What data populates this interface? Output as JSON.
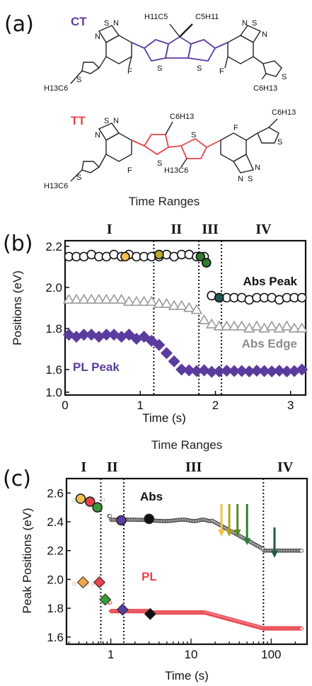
{
  "panel_a": {
    "label": "(a)",
    "molecules": [
      {
        "name": "CT",
        "color": "#5b3c9e",
        "atoms": {
          "s_n": "S",
          "n": "N",
          "f": "F",
          "s": "S",
          "h11c5": "H11C5",
          "c5h11": "C5H11",
          "h13c6": "H13C6",
          "c6h13": "C6H13"
        }
      },
      {
        "name": "TT",
        "color": "#e8434b",
        "atoms": {
          "s_n": "S",
          "n": "N",
          "f": "F",
          "s": "S",
          "h13c6": "H13C6",
          "c6h13": "C6H13"
        }
      }
    ]
  },
  "chart_data": [
    {
      "panel": "(b)",
      "type": "scatter",
      "range_title": "Time Ranges",
      "ranges": [
        "I",
        "II",
        "III",
        "IV"
      ],
      "xlabel": "Time (s)",
      "ylabel": "Positions (eV)",
      "xlim": [
        0,
        3.2
      ],
      "ylim": [
        1.0,
        2.2
      ],
      "axis_break": {
        "between": [
          1.0,
          1.6
        ]
      },
      "xticks": [
        0,
        1,
        2,
        3
      ],
      "yticks": [
        1.0,
        1.6,
        1.8,
        2.0,
        2.2
      ],
      "dividers": [
        1.18,
        1.78,
        2.08
      ],
      "series": [
        {
          "name": "Abs Peak",
          "marker": "circle",
          "color": "#111111",
          "x": [
            0.05,
            0.15,
            0.25,
            0.35,
            0.45,
            0.55,
            0.65,
            0.75,
            0.85,
            0.95,
            1.05,
            1.15,
            1.25,
            1.35,
            1.45,
            1.55,
            1.65,
            1.75,
            1.85,
            1.95,
            2.05,
            2.15,
            2.25,
            2.35,
            2.45,
            2.55,
            2.65,
            2.75,
            2.85,
            2.95,
            3.05,
            3.15
          ],
          "y": [
            2.15,
            2.15,
            2.15,
            2.16,
            2.15,
            2.15,
            2.16,
            2.15,
            2.16,
            2.15,
            2.15,
            2.15,
            2.15,
            2.16,
            2.15,
            2.16,
            2.16,
            2.15,
            2.15,
            1.96,
            1.95,
            1.95,
            1.95,
            1.95,
            1.94,
            1.95,
            1.95,
            1.95,
            1.94,
            1.95,
            1.95,
            1.95
          ]
        },
        {
          "name": "Abs Edge",
          "marker": "triangle",
          "color": "#9a9a9a",
          "x": [
            0.05,
            0.15,
            0.25,
            0.35,
            0.45,
            0.55,
            0.65,
            0.75,
            0.85,
            0.95,
            1.05,
            1.15,
            1.25,
            1.35,
            1.45,
            1.55,
            1.65,
            1.75,
            1.85,
            1.95,
            2.05,
            2.15,
            2.25,
            2.35,
            2.45,
            2.55,
            2.65,
            2.75,
            2.85,
            2.95,
            3.05,
            3.15
          ],
          "y": [
            1.94,
            1.94,
            1.94,
            1.94,
            1.94,
            1.94,
            1.94,
            1.94,
            1.93,
            1.93,
            1.93,
            1.93,
            1.92,
            1.92,
            1.91,
            1.91,
            1.9,
            1.89,
            1.84,
            1.82,
            1.81,
            1.81,
            1.81,
            1.81,
            1.8,
            1.81,
            1.8,
            1.81,
            1.8,
            1.81,
            1.8,
            1.8
          ]
        },
        {
          "name": "PL Peak",
          "marker": "diamond",
          "color": "#5b3c9e",
          "x": [
            0.05,
            0.15,
            0.25,
            0.35,
            0.45,
            0.55,
            0.65,
            0.75,
            0.85,
            0.95,
            1.05,
            1.15,
            1.25,
            1.35,
            1.45,
            1.55,
            1.65,
            1.75,
            1.85,
            1.95,
            2.05,
            2.15,
            2.25,
            2.35,
            2.45,
            2.55,
            2.65,
            2.75,
            2.85,
            2.95,
            3.05,
            3.15
          ],
          "y": [
            1.77,
            1.76,
            1.77,
            1.77,
            1.76,
            1.77,
            1.77,
            1.76,
            1.77,
            1.75,
            1.76,
            1.74,
            1.72,
            1.68,
            1.64,
            1.6,
            1.58,
            1.56,
            1.58,
            1.54,
            1.55,
            1.57,
            1.56,
            1.56,
            1.55,
            1.57,
            1.56,
            1.55,
            1.57,
            1.55,
            1.56,
            1.6
          ]
        }
      ],
      "highlighted_points": [
        {
          "series": "Abs Peak",
          "x": 0.8,
          "y": 2.15,
          "color": "#f0c24b"
        },
        {
          "series": "Abs Peak",
          "x": 1.25,
          "y": 2.16,
          "color": "#bba92c"
        },
        {
          "series": "Abs Peak",
          "x": 1.8,
          "y": 2.15,
          "color": "#2e7d32"
        },
        {
          "series": "Abs Peak",
          "x": 1.88,
          "y": 2.12,
          "color": "#2e7d32"
        },
        {
          "series": "Abs Peak",
          "x": 2.05,
          "y": 1.95,
          "color": "#205a52"
        }
      ]
    },
    {
      "panel": "(c)",
      "type": "scatter",
      "range_title": "Time Ranges",
      "ranges": [
        "I",
        "II",
        "III",
        "IV"
      ],
      "xlabel": "Time (s)",
      "ylabel": "Peak Positions (eV)",
      "xscale": "log",
      "xlim": [
        0.28,
        280
      ],
      "ylim": [
        1.55,
        2.7
      ],
      "xticks": [
        1,
        10,
        100
      ],
      "yticks": [
        1.6,
        1.8,
        2.0,
        2.2,
        2.4,
        2.6
      ],
      "dividers": [
        0.75,
        1.45,
        80
      ],
      "series": [
        {
          "name": "Abs",
          "marker": "circle",
          "color": "#111111",
          "curve": "abs"
        },
        {
          "name": "PL",
          "marker": "diamond",
          "color": "#e8434b",
          "curve": "pl"
        }
      ],
      "highlighted_points": [
        {
          "series": "Abs",
          "x": 0.42,
          "y": 2.56,
          "color": "#f0c24b",
          "marker": "circle"
        },
        {
          "series": "Abs",
          "x": 0.55,
          "y": 2.54,
          "color": "#e8434b",
          "marker": "circle"
        },
        {
          "series": "Abs",
          "x": 0.68,
          "y": 2.5,
          "color": "#3a9a3a",
          "marker": "circle"
        },
        {
          "series": "Abs",
          "x": 1.35,
          "y": 2.41,
          "color": "#5b3c9e",
          "marker": "circle"
        },
        {
          "series": "Abs",
          "x": 3.0,
          "y": 2.42,
          "color": "#111111",
          "marker": "circle"
        },
        {
          "series": "PL",
          "x": 0.45,
          "y": 1.98,
          "color": "#f0a84b",
          "marker": "diamond"
        },
        {
          "series": "PL",
          "x": 0.72,
          "y": 1.98,
          "color": "#e8434b",
          "marker": "diamond"
        },
        {
          "series": "PL",
          "x": 0.85,
          "y": 1.86,
          "color": "#3a9a3a",
          "marker": "diamond"
        },
        {
          "series": "PL",
          "x": 1.4,
          "y": 1.79,
          "color": "#5b3c9e",
          "marker": "diamond"
        },
        {
          "series": "PL",
          "x": 3.1,
          "y": 1.76,
          "color": "#111111",
          "marker": "diamond"
        }
      ],
      "arrows": [
        {
          "x": 24,
          "color": "#f0c24b"
        },
        {
          "x": 30,
          "color": "#b0a020"
        },
        {
          "x": 38,
          "color": "#5c8a22"
        },
        {
          "x": 50,
          "color": "#2e7d32"
        },
        {
          "x": 110,
          "color": "#1d5a4c"
        }
      ]
    }
  ]
}
